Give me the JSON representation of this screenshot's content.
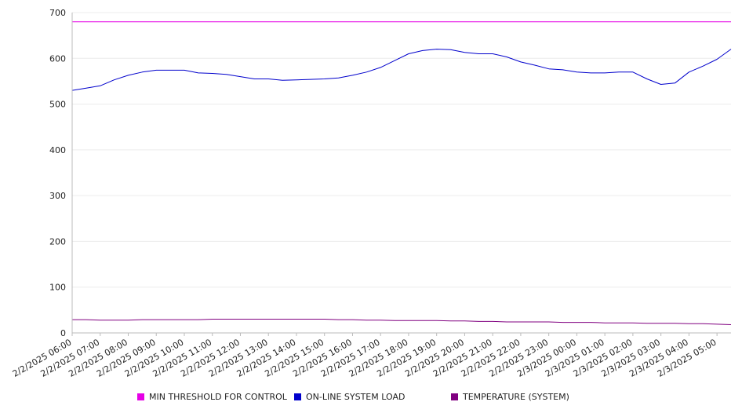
{
  "chart_data": {
    "type": "line",
    "title": "",
    "xlabel": "",
    "ylabel": "",
    "ylim": [
      0,
      700
    ],
    "y_ticks": [
      0,
      100,
      200,
      300,
      400,
      500,
      600,
      700
    ],
    "grid": true,
    "legend_position": "bottom",
    "x_tick_labels": [
      "2/2/2025 06:00",
      "2/2/2025 07:00",
      "2/2/2025 08:00",
      "2/2/2025 09:00",
      "2/2/2025 10:00",
      "2/2/2025 11:00",
      "2/2/2025 12:00",
      "2/2/2025 13:00",
      "2/2/2025 14:00",
      "2/2/2025 15:00",
      "2/2/2025 16:00",
      "2/2/2025 17:00",
      "2/2/2025 18:00",
      "2/2/2025 19:00",
      "2/2/2025 20:00",
      "2/2/2025 21:00",
      "2/2/2025 22:00",
      "2/2/2025 23:00",
      "2/3/2025 00:00",
      "2/3/2025 01:00",
      "2/3/2025 02:00",
      "2/3/2025 03:00",
      "2/3/2025 04:00",
      "2/3/2025 05:00"
    ],
    "x": [
      "2/2/2025 06:00",
      "2/2/2025 06:30",
      "2/2/2025 07:00",
      "2/2/2025 07:30",
      "2/2/2025 08:00",
      "2/2/2025 08:30",
      "2/2/2025 09:00",
      "2/2/2025 09:30",
      "2/2/2025 10:00",
      "2/2/2025 10:30",
      "2/2/2025 11:00",
      "2/2/2025 11:30",
      "2/2/2025 12:00",
      "2/2/2025 12:30",
      "2/2/2025 13:00",
      "2/2/2025 13:30",
      "2/2/2025 14:00",
      "2/2/2025 14:30",
      "2/2/2025 15:00",
      "2/2/2025 15:30",
      "2/2/2025 16:00",
      "2/2/2025 16:30",
      "2/2/2025 17:00",
      "2/2/2025 17:30",
      "2/2/2025 18:00",
      "2/2/2025 18:30",
      "2/2/2025 19:00",
      "2/2/2025 19:30",
      "2/2/2025 20:00",
      "2/2/2025 20:30",
      "2/2/2025 21:00",
      "2/2/2025 21:30",
      "2/2/2025 22:00",
      "2/2/2025 22:30",
      "2/2/2025 23:00",
      "2/2/2025 23:30",
      "2/3/2025 00:00",
      "2/3/2025 00:30",
      "2/3/2025 01:00",
      "2/3/2025 01:30",
      "2/3/2025 02:00",
      "2/3/2025 02:30",
      "2/3/2025 03:00",
      "2/3/2025 03:30",
      "2/3/2025 04:00",
      "2/3/2025 04:30",
      "2/3/2025 05:00",
      "2/3/2025 05:30"
    ],
    "series": [
      {
        "name": "MIN THRESHOLD FOR CONTROL",
        "color": "#e600e6",
        "values": [
          680,
          680,
          680,
          680,
          680,
          680,
          680,
          680,
          680,
          680,
          680,
          680,
          680,
          680,
          680,
          680,
          680,
          680,
          680,
          680,
          680,
          680,
          680,
          680,
          680,
          680,
          680,
          680,
          680,
          680,
          680,
          680,
          680,
          680,
          680,
          680,
          680,
          680,
          680,
          680,
          680,
          680,
          680,
          680,
          680,
          680,
          680,
          680
        ]
      },
      {
        "name": "ON-LINE SYSTEM LOAD",
        "color": "#0000cc",
        "values": [
          530,
          535,
          540,
          553,
          563,
          570,
          574,
          574,
          574,
          568,
          567,
          565,
          560,
          555,
          555,
          552,
          553,
          554,
          555,
          557,
          563,
          570,
          580,
          595,
          610,
          617,
          620,
          619,
          613,
          610,
          610,
          603,
          592,
          585,
          577,
          575,
          570,
          568,
          568,
          570,
          570,
          555,
          543,
          546,
          570,
          583,
          598,
          620
        ]
      },
      {
        "name": "TEMPERATURE (SYSTEM)",
        "color": "#800080",
        "values": [
          29,
          29,
          28,
          28,
          28,
          29,
          29,
          29,
          29,
          29,
          30,
          30,
          30,
          30,
          30,
          30,
          30,
          30,
          30,
          29,
          29,
          28,
          28,
          27,
          27,
          27,
          27,
          26,
          26,
          25,
          25,
          24,
          24,
          24,
          24,
          23,
          23,
          23,
          22,
          22,
          22,
          21,
          21,
          21,
          20,
          20,
          19,
          18
        ]
      }
    ]
  }
}
